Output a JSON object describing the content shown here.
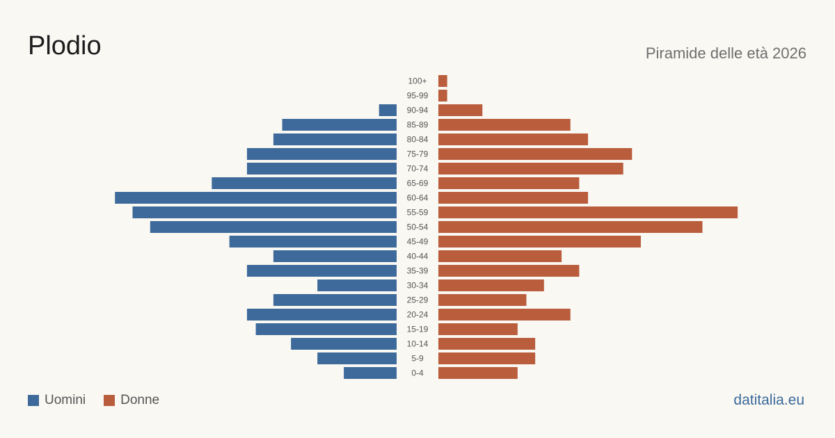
{
  "header": {
    "title": "Plodio",
    "subtitle": "Piramide delle età 2026"
  },
  "legend": {
    "men_label": "Uomini",
    "women_label": "Donne"
  },
  "footer": {
    "source": "datitalia.eu"
  },
  "colors": {
    "men": "#3d6a9a",
    "women": "#b95d3c",
    "background": "#faf8f3"
  },
  "chart_data": {
    "type": "bar",
    "orientation": "horizontal-pyramid",
    "categories": [
      "100+",
      "95-99",
      "90-94",
      "85-89",
      "80-84",
      "75-79",
      "70-74",
      "65-69",
      "60-64",
      "55-59",
      "50-54",
      "45-49",
      "40-44",
      "35-39",
      "30-34",
      "25-29",
      "20-24",
      "15-19",
      "10-14",
      "5-9",
      "0-4"
    ],
    "series": [
      {
        "name": "Uomini",
        "values": [
          0,
          0,
          2,
          13,
          14,
          17,
          17,
          21,
          32,
          30,
          28,
          19,
          14,
          17,
          9,
          14,
          17,
          16,
          12,
          9,
          6
        ]
      },
      {
        "name": "Donne",
        "values": [
          1,
          1,
          5,
          15,
          17,
          22,
          21,
          16,
          17,
          34,
          30,
          23,
          14,
          16,
          12,
          10,
          15,
          9,
          11,
          11,
          9
        ]
      }
    ],
    "grid": false,
    "legend_position": "bottom-left"
  }
}
